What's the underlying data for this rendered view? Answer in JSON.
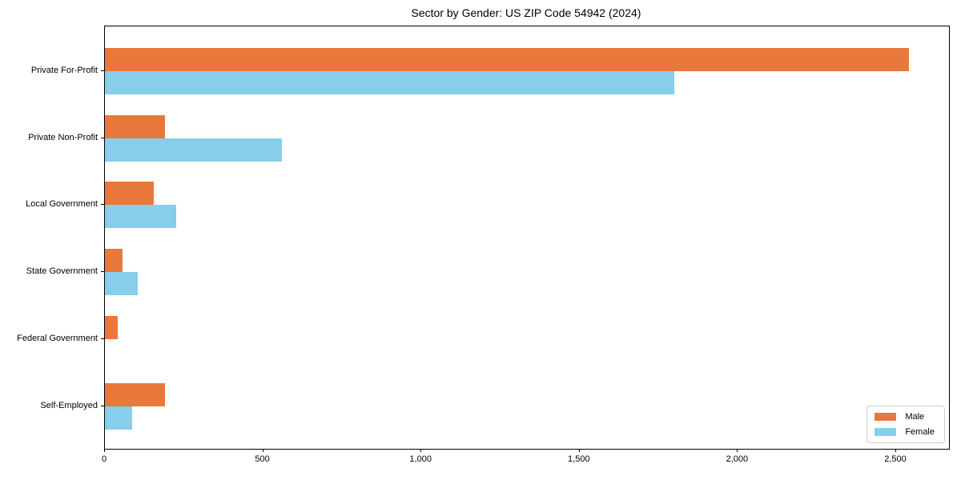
{
  "chart_data": {
    "type": "bar",
    "orientation": "horizontal",
    "title": "Sector by Gender: US ZIP Code 54942 (2024)",
    "categories": [
      "Private For-Profit",
      "Private Non-Profit",
      "Local Government",
      "State Government",
      "Federal Government",
      "Self-Employed"
    ],
    "series": [
      {
        "name": "Male",
        "color": "#e8783c",
        "values": [
          2540,
          190,
          155,
          55,
          40,
          190
        ]
      },
      {
        "name": "Female",
        "color": "#87ceeb",
        "values": [
          1800,
          560,
          225,
          105,
          0,
          85
        ]
      }
    ],
    "xlabel": "",
    "ylabel": "",
    "xlim": [
      0,
      2667
    ],
    "x_ticks": [
      {
        "value": 0,
        "label": "0"
      },
      {
        "value": 500,
        "label": "500"
      },
      {
        "value": 1000,
        "label": "1,000"
      },
      {
        "value": 1500,
        "label": "1,500"
      },
      {
        "value": 2000,
        "label": "2,000"
      },
      {
        "value": 2500,
        "label": "2,500"
      }
    ],
    "grid": false,
    "legend_position": "lower right",
    "frame_color": "#000000"
  }
}
